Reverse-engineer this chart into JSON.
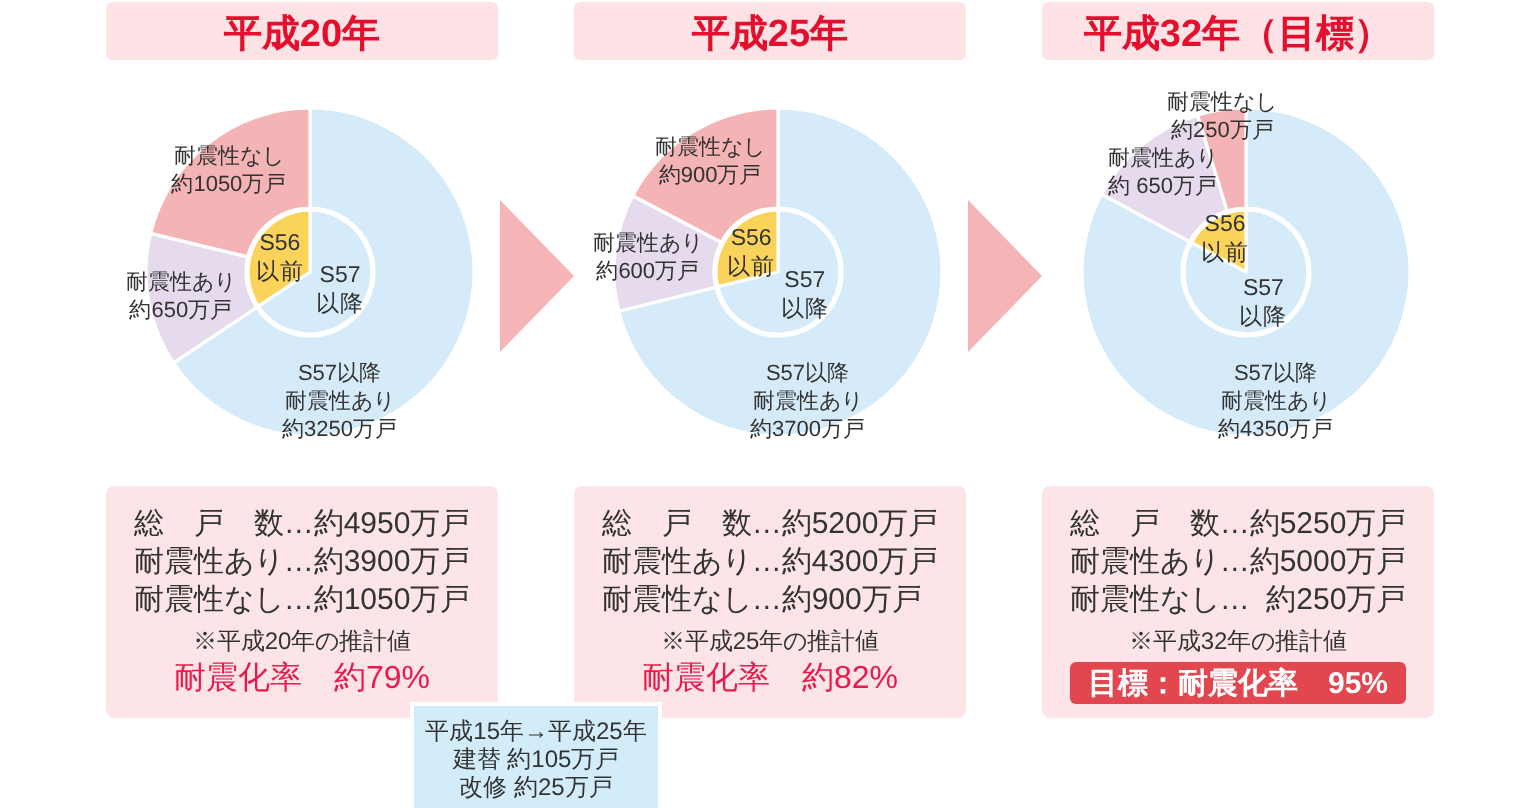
{
  "chart_data": [
    {
      "type": "donut",
      "title": "平成20年",
      "categories": [
        "S57以降耐震性あり",
        "耐震性あり",
        "耐震性なし"
      ],
      "values": [
        3250,
        650,
        1050
      ],
      "value_labels": [
        "約3250万戸",
        "約650万戸",
        "約1050万戸"
      ],
      "colors": [
        "#d5ebfa",
        "#e6daed",
        "#f4b3b5"
      ],
      "annotations": [
        "総　戸　数…約4950万戸",
        "耐震性あり…約3900万戸",
        "耐震性なし…約1050万戸",
        "※平成20年の推計値",
        "耐震化率　約79%"
      ]
    },
    {
      "type": "pie",
      "categories": [
        "S57以降",
        "S56以前"
      ],
      "values": [
        65.7,
        34.3
      ],
      "colors": [
        "#d5ebfa",
        "#fcd35a"
      ]
    },
    {
      "type": "donut",
      "title": "平成25年",
      "categories": [
        "S57以降耐震性あり",
        "耐震性あり",
        "耐震性なし"
      ],
      "values": [
        3700,
        600,
        900
      ],
      "value_labels": [
        "約3700万戸",
        "約600万戸",
        "約900万戸"
      ],
      "colors": [
        "#d5ebfa",
        "#e6daed",
        "#f4b3b5"
      ],
      "annotations": [
        "総　戸　数…約5200万戸",
        "耐震性あり…約4300万戸",
        "耐震性なし…約900万戸",
        "※平成25年の推計値",
        "耐震化率　約82%"
      ]
    },
    {
      "type": "pie",
      "categories": [
        "S57以降",
        "S56以前"
      ],
      "values": [
        71.2,
        28.8
      ],
      "colors": [
        "#d5ebfa",
        "#fcd35a"
      ]
    },
    {
      "type": "donut",
      "title": "平成32年（目標）",
      "categories": [
        "S57以降耐震性あり",
        "耐震性あり",
        "耐震性なし"
      ],
      "values": [
        4350,
        650,
        250
      ],
      "value_labels": [
        "約4350万戸",
        "約 650万戸",
        "約250万戸"
      ],
      "colors": [
        "#d5ebfa",
        "#e6daed",
        "#f4b3b5"
      ],
      "annotations": [
        "総　戸　数…約5250万戸",
        "耐震性あり…約5000万戸",
        "耐震性なし…  約250万戸",
        "※平成32年の推計値",
        "目標：耐震化率　95%"
      ]
    },
    {
      "type": "pie",
      "categories": [
        "S57以降",
        "S56以前"
      ],
      "values": [
        82.9,
        17.1
      ],
      "colors": [
        "#d5ebfa",
        "#fcd35a"
      ]
    },
    {
      "type": "other",
      "annotations": [
        "平成15年→平成25年",
        "建替 約105万戸",
        "改修 約25万戸"
      ]
    }
  ]
}
